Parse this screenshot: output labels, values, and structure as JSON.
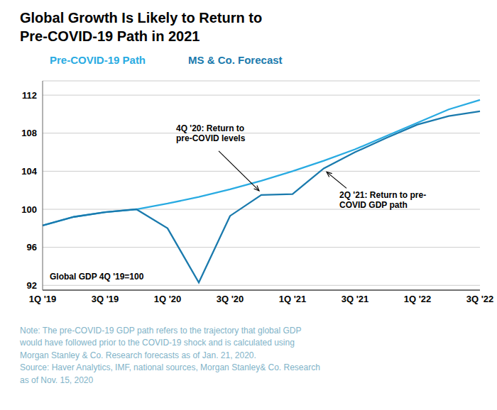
{
  "chart_data": {
    "type": "line",
    "title": "Global Growth Is Likely to Return to\nPre-COVID-19 Path in 2021",
    "categories": [
      "1Q '19",
      null,
      "3Q '19",
      null,
      "1Q '20",
      null,
      "3Q '20",
      null,
      "1Q '21",
      null,
      "3Q '21",
      null,
      "1Q '22",
      null,
      "3Q '22"
    ],
    "series": [
      {
        "name": "Pre-COVID-19 Path",
        "color": "#29abe2",
        "values": [
          98.3,
          99.2,
          99.7,
          100.0,
          100.6,
          101.3,
          102.1,
          103.0,
          104.0,
          105.1,
          106.3,
          107.7,
          109.1,
          110.5,
          111.5
        ]
      },
      {
        "name": "MS & Co. Forecast",
        "color": "#1a7aad",
        "values": [
          98.3,
          99.2,
          99.7,
          100.0,
          98.0,
          92.3,
          99.3,
          101.5,
          101.6,
          104.3,
          106.0,
          107.5,
          108.9,
          109.8,
          110.3
        ]
      }
    ],
    "ylim": [
      91.5,
      113.5
    ],
    "yticks": [
      92,
      96,
      100,
      104,
      108,
      112
    ],
    "grid": true,
    "annotations": [
      {
        "text": "4Q '20: Return to\npre-COVID levels"
      },
      {
        "text": "2Q '21: Return to pre-\nCOVID GDP path"
      },
      {
        "text": "Global GDP 4Q '19=100"
      }
    ],
    "note": "Note: The pre-COVID-19 GDP path refers to the trajectory that global GDP\nwould have followed prior to the COVID-19 shock and is calculated using\nMorgan Stanley & Co. Research forecasts as of Jan. 21, 2020.\nSource: Haver Analytics, IMF, national sources, Morgan Stanley& Co. Research\nas of Nov. 15, 2020",
    "note_color": "#7fb3c8"
  }
}
